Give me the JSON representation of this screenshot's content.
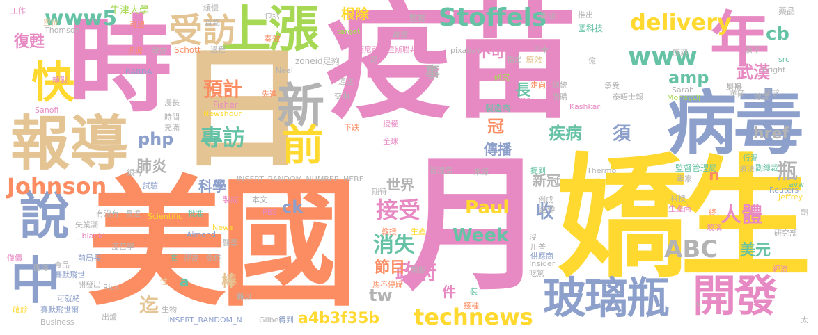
{
  "palette": {
    "pink": "#e78ac3",
    "orange": "#fc8d62",
    "yellow": "#ffd92f",
    "lime": "#a6d854",
    "teal": "#66c2a5",
    "blue": "#8da0cb",
    "tan": "#e5c494",
    "gray": "#b3b3b3"
  },
  "words": [
    {
      "text": "疫苗",
      "c": "pink"
    },
    {
      "text": "美國",
      "c": "orange"
    },
    {
      "text": "日",
      "c": "tan"
    },
    {
      "text": "時",
      "c": "pink"
    },
    {
      "text": "月",
      "c": "pink"
    },
    {
      "text": "嬌生",
      "c": "yellow"
    },
    {
      "text": "病毒",
      "c": "blue"
    },
    {
      "text": "報導",
      "c": "tan"
    },
    {
      "text": "玻璃瓶",
      "c": "blue"
    },
    {
      "text": "開發",
      "c": "pink"
    },
    {
      "text": "上漲",
      "c": "lime"
    },
    {
      "text": "年",
      "c": "pink"
    },
    {
      "text": "說",
      "c": "blue"
    },
    {
      "text": "中",
      "c": "blue"
    },
    {
      "text": "快",
      "c": "yellow"
    },
    {
      "text": "新",
      "c": "gray"
    },
    {
      "text": "前",
      "c": "yellow"
    },
    {
      "text": "Johnson",
      "c": "orange"
    },
    {
      "text": "受訪",
      "c": "tan"
    },
    {
      "text": "www5",
      "c": "teal"
    },
    {
      "text": "Stoffels",
      "c": "teal"
    },
    {
      "text": "delivery",
      "c": "yellow"
    },
    {
      "text": "www",
      "c": "teal"
    },
    {
      "text": "technews",
      "c": "yellow"
    },
    {
      "text": "ABC",
      "c": "gray"
    },
    {
      "text": "專訪",
      "c": "teal"
    },
    {
      "text": "預計",
      "c": "orange"
    },
    {
      "text": "接受",
      "c": "pink"
    },
    {
      "text": "消失",
      "c": "teal"
    },
    {
      "text": "政府",
      "c": "pink"
    },
    {
      "text": "節目",
      "c": "orange"
    },
    {
      "text": "人體",
      "c": "pink"
    },
    {
      "text": "武漢",
      "c": "pink"
    },
    {
      "text": "美元",
      "c": "teal"
    },
    {
      "text": "疾病",
      "c": "teal"
    },
    {
      "text": "傳播",
      "c": "blue"
    },
    {
      "text": "Paul",
      "c": "yellow"
    },
    {
      "text": "Week",
      "c": "teal"
    },
    {
      "text": "a4b3f35b",
      "c": "yellow"
    },
    {
      "text": "cb",
      "c": "teal"
    },
    {
      "text": "amp",
      "c": "teal"
    },
    {
      "text": "php",
      "c": "blue"
    },
    {
      "text": "肺炎",
      "c": "gray"
    },
    {
      "text": "復甦",
      "c": "pink"
    },
    {
      "text": "根除",
      "c": "yellow"
    },
    {
      "text": "不可能",
      "c": "pink"
    },
    {
      "text": "href",
      "c": "gray"
    },
    {
      "text": "tw",
      "c": "gray"
    },
    {
      "text": "收",
      "c": "blue"
    },
    {
      "text": "迄",
      "c": "tan"
    },
    {
      "text": "棒",
      "c": "tan"
    },
    {
      "text": "新冠",
      "c": "gray"
    },
    {
      "text": "世界",
      "c": "gray"
    },
    {
      "text": "科學",
      "c": "blue"
    },
    {
      "text": "瓶",
      "c": "gray"
    },
    {
      "text": "須",
      "c": "blue"
    },
    {
      "text": "事",
      "c": "gray"
    },
    {
      "text": "長",
      "c": "teal"
    },
    {
      "text": "冠",
      "c": "orange"
    },
    {
      "text": "件",
      "c": "pink"
    },
    {
      "text": "ck",
      "c": "blue"
    },
    {
      "text": "a",
      "c": "teal"
    },
    {
      "text": "n",
      "c": "orange"
    },
    {
      "text": "INSERT_RANDOM_NUMBER_HERE",
      "c": "gray"
    },
    {
      "text": "INSERT_RANDOM_N",
      "c": "blue"
    },
    {
      "text": "牛津大學",
      "c": "lime"
    },
    {
      "text": "工作",
      "c": "pink"
    },
    {
      "text": "單位",
      "c": "tan"
    },
    {
      "text": "Thomson",
      "c": "gray"
    },
    {
      "text": "可望",
      "c": "orange"
    },
    {
      "text": "Schott",
      "c": "orange"
    },
    {
      "text": "把握",
      "c": "orange"
    },
    {
      "text": "BARDA",
      "c": "blue"
    },
    {
      "text": "Fisher",
      "c": "pink"
    },
    {
      "text": "Newshour",
      "c": "yellow"
    },
    {
      "text": "Sanofi",
      "c": "pink"
    },
    {
      "text": "時間",
      "c": "gray"
    },
    {
      "text": "Neel",
      "c": "gray"
    },
    {
      "text": "zoneid足夠",
      "c": "gray"
    },
    {
      "text": "明尼亞波里斯聯邦",
      "c": "pink"
    },
    {
      "text": "pixabay",
      "c": "gray"
    },
    {
      "text": "數據",
      "c": "gray"
    },
    {
      "text": "推出",
      "c": "gray"
    },
    {
      "text": "藥品",
      "c": "gray"
    },
    {
      "text": "國科技",
      "c": "teal"
    },
    {
      "text": "旗下",
      "c": "gray"
    },
    {
      "text": "Bright",
      "c": "gray"
    },
    {
      "text": "src",
      "c": "teal"
    },
    {
      "text": "感到",
      "c": "gray"
    },
    {
      "text": "指出",
      "c": "gray"
    },
    {
      "text": "target",
      "c": "lime"
    },
    {
      "text": "包括",
      "c": "gray"
    },
    {
      "text": "產量",
      "c": "gray"
    },
    {
      "text": "奏效",
      "c": "orange"
    },
    {
      "text": "療效",
      "c": "tan"
    },
    {
      "text": "總統",
      "c": "gray"
    },
    {
      "text": "億",
      "c": "gray"
    },
    {
      "text": "磨損",
      "c": "gray"
    },
    {
      "text": "承受",
      "c": "gray"
    },
    {
      "text": "泰晤士報",
      "c": "gray"
    },
    {
      "text": "需求",
      "c": "gray"
    },
    {
      "text": "英國",
      "c": "gray"
    },
    {
      "text": "MoneyDJ",
      "c": "lime"
    },
    {
      "text": "Sarah",
      "c": "gray"
    },
    {
      "text": "FDA",
      "c": "gray"
    },
    {
      "text": "Kashkari",
      "c": "pink"
    },
    {
      "text": "img",
      "c": "pink"
    },
    {
      "text": "研究",
      "c": "lime"
    },
    {
      "text": "運送",
      "c": "gray"
    },
    {
      "text": "製造商",
      "c": "teal"
    },
    {
      "text": "下跌",
      "c": "orange"
    },
    {
      "text": "全球",
      "c": "pink"
    },
    {
      "text": "授權",
      "c": "pink"
    },
    {
      "text": "交由",
      "c": "gray"
    },
    {
      "text": "先進",
      "c": "orange"
    },
    {
      "text": "充滿",
      "c": "gray"
    },
    {
      "text": "漫長",
      "c": "gray"
    },
    {
      "text": "銀行",
      "c": "gray"
    },
    {
      "text": "試驗",
      "c": "blue"
    },
    {
      "text": "管理局",
      "c": "gray"
    },
    {
      "text": "來源",
      "c": "gray"
    },
    {
      "text": "提到",
      "c": "teal"
    },
    {
      "text": "Thermo",
      "c": "gray"
    },
    {
      "text": "監督管理局",
      "c": "teal"
    },
    {
      "text": "副總裁",
      "c": "teal"
    },
    {
      "text": "低溫",
      "c": "teal"
    },
    {
      "text": "療法",
      "c": "gray"
    },
    {
      "text": "專家",
      "c": "gray"
    },
    {
      "text": "avw",
      "c": "teal"
    },
    {
      "text": "Reuters",
      "c": "blue"
    },
    {
      "text": "Jeffrey",
      "c": "yellow"
    },
    {
      "text": "科技",
      "c": "gray"
    },
    {
      "text": "生產商",
      "c": "pink"
    },
    {
      "text": "研究部",
      "c": "gray"
    },
    {
      "text": "玻璃",
      "c": "pink"
    },
    {
      "text": "終",
      "c": "orange"
    },
    {
      "text": "川普",
      "c": "gray"
    },
    {
      "text": "供應商",
      "c": "blue"
    },
    {
      "text": "例成",
      "c": "gray"
    },
    {
      "text": "延伸",
      "c": "gray"
    },
    {
      "text": "Insider",
      "c": "gray"
    },
    {
      "text": "製成",
      "c": "pink"
    },
    {
      "text": "Scientific",
      "c": "yellow"
    },
    {
      "text": "News",
      "c": "yellow"
    },
    {
      "text": "Almond",
      "c": "blue"
    },
    {
      "text": "PBS",
      "c": "pink"
    },
    {
      "text": "本文",
      "c": "gray"
    },
    {
      "text": "期待",
      "c": "gray"
    },
    {
      "text": "教授",
      "c": "orange"
    },
    {
      "text": "生產",
      "c": "yellow"
    },
    {
      "text": "長達",
      "c": "gray"
    },
    {
      "text": "批准",
      "c": "teal"
    },
    {
      "text": "有沒有",
      "c": "gray"
    },
    {
      "text": "失業潮",
      "c": "gray"
    },
    {
      "text": "_blank'",
      "c": "pink"
    },
    {
      "text": "疫苗學",
      "c": "gray"
    },
    {
      "text": "醫學",
      "c": "gray"
    },
    {
      "text": "前局長",
      "c": "blue"
    },
    {
      "text": "底",
      "c": "teal"
    },
    {
      "text": "提高",
      "c": "gray"
    },
    {
      "text": "免疫",
      "c": "gray"
    },
    {
      "text": "食品",
      "c": "gray"
    },
    {
      "text": "賽默飛世",
      "c": "blue"
    },
    {
      "text": "團隊",
      "c": "gray"
    },
    {
      "text": "開發出",
      "c": "gray"
    },
    {
      "text": "Rick",
      "c": "gray"
    },
    {
      "text": "性",
      "c": "tan"
    },
    {
      "text": "可就緒",
      "c": "blue"
    },
    {
      "text": "確診",
      "c": "yellow"
    },
    {
      "text": "賽默飛世爾",
      "c": "blue"
    },
    {
      "text": "生物",
      "c": "gray"
    },
    {
      "text": "難以",
      "c": "gray"
    },
    {
      "text": "Gilbert",
      "c": "gray"
    },
    {
      "text": "出爐",
      "c": "gray"
    },
    {
      "text": "Business",
      "c": "gray"
    },
    {
      "text": "馬不停蹄",
      "c": "orange"
    },
    {
      "text": "接種",
      "c": "orange"
    },
    {
      "text": "裝",
      "c": "teal"
    },
    {
      "text": "常態",
      "c": "gray"
    },
    {
      "text": "沒",
      "c": "gray"
    },
    {
      "text": "吃驚",
      "c": "gray"
    },
    {
      "text": "經濟",
      "c": "pink"
    },
    {
      "text": "太",
      "c": "gray"
    },
    {
      "text": "v",
      "c": "gray"
    },
    {
      "text": "得到",
      "c": "blue"
    },
    {
      "text": "緩慢",
      "c": "gray"
    },
    {
      "text": "首都",
      "c": "gray"
    },
    {
      "text": "過程",
      "c": "gray"
    },
    {
      "text": "發高",
      "c": "gray"
    },
    {
      "text": "新聞",
      "c": "gray"
    },
    {
      "text": "不幸",
      "c": "gray"
    },
    {
      "text": "走向",
      "c": "orange"
    },
    {
      "text": "間購",
      "c": "gray"
    },
    {
      "text": "總裁",
      "c": "gray"
    },
    {
      "text": "劑",
      "c": "gray"
    },
    {
      "text": "僅價",
      "c": "pink"
    },
    {
      "text": "路",
      "c": "gray"
    },
    {
      "text": "轉戰",
      "c": "pink"
    }
  ]
}
